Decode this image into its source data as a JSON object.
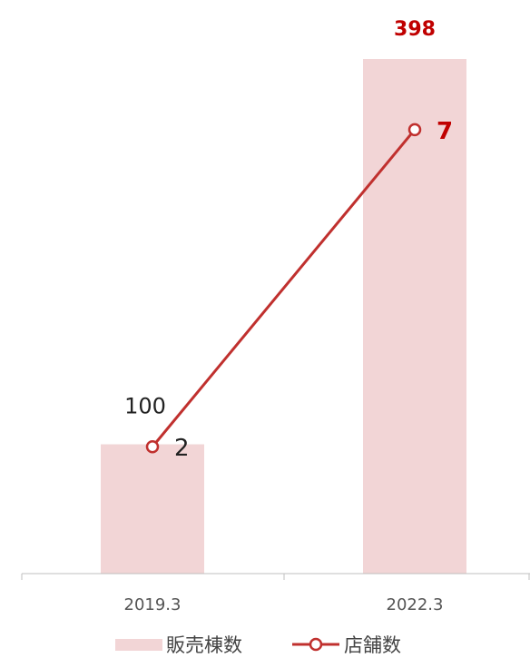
{
  "chart_data": {
    "type": "bar",
    "categories": [
      "2019.3",
      "2022.3"
    ],
    "series": [
      {
        "name": "販売棟数",
        "kind": "bar",
        "values": [
          100,
          398
        ],
        "value_labels": [
          "100",
          "398"
        ],
        "label_colors": [
          "#222222",
          "#c00000"
        ],
        "color": "#f2d5d6"
      },
      {
        "name": "店舗数",
        "kind": "line",
        "values": [
          2,
          7
        ],
        "value_labels": [
          "2",
          "7"
        ],
        "label_colors": [
          "#222222",
          "#c00000"
        ],
        "color": "#c0302e"
      }
    ],
    "ylim_bar": [
      0,
      398
    ],
    "ylim_line": [
      0,
      8.4
    ],
    "grid": false,
    "legend_position": "bottom"
  }
}
